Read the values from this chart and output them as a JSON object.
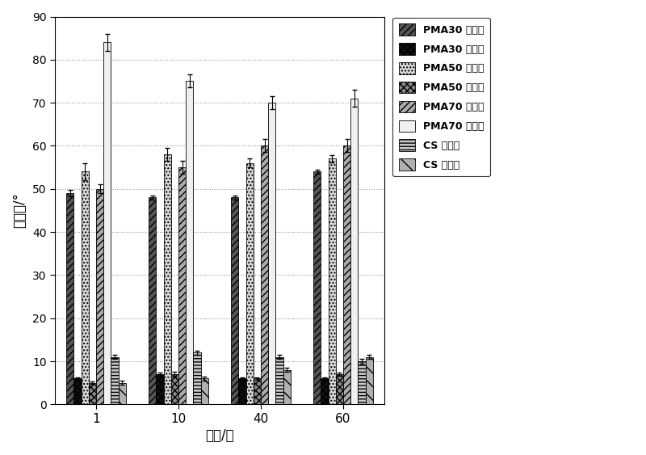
{
  "time_labels": [
    "1",
    "10",
    "40",
    "60"
  ],
  "xlabel": "时间/天",
  "ylabel": "接触角/°",
  "ylim": [
    0,
    90
  ],
  "yticks": [
    0,
    10,
    20,
    30,
    40,
    50,
    60,
    70,
    80,
    90
  ],
  "series": [
    {
      "label": "PMA30 前进角",
      "values": [
        49,
        48,
        48,
        54
      ],
      "errors": [
        0.8,
        0.5,
        0.5,
        0.5
      ]
    },
    {
      "label": "PMA30 后退角",
      "values": [
        6,
        7,
        6,
        6
      ],
      "errors": [
        0.3,
        0.3,
        0.3,
        0.3
      ]
    },
    {
      "label": "PMA50 前进角",
      "values": [
        54,
        58,
        56,
        57
      ],
      "errors": [
        2.0,
        1.5,
        1.0,
        0.8
      ]
    },
    {
      "label": "PMA50 后退角",
      "values": [
        5,
        7,
        6,
        7
      ],
      "errors": [
        0.3,
        0.5,
        0.3,
        0.4
      ]
    },
    {
      "label": "PMA70 前进角",
      "values": [
        50,
        55,
        60,
        60
      ],
      "errors": [
        1.0,
        1.5,
        1.5,
        1.5
      ]
    },
    {
      "label": "PMA70 后退角",
      "values": [
        84,
        75,
        70,
        71
      ],
      "errors": [
        2.0,
        1.5,
        1.5,
        2.0
      ]
    },
    {
      "label": "CS 前进角",
      "values": [
        11,
        12,
        11,
        10
      ],
      "errors": [
        0.5,
        0.5,
        0.5,
        0.5
      ]
    },
    {
      "label": "CS 后退角",
      "values": [
        5,
        6,
        8,
        11
      ],
      "errors": [
        0.5,
        0.5,
        0.5,
        0.5
      ]
    }
  ],
  "series_styles": [
    {
      "hatch": "////",
      "fc": "#555555",
      "ec": "#000000"
    },
    {
      "hatch": "xxxx",
      "fc": "#111111",
      "ec": "#000000"
    },
    {
      "hatch": "....",
      "fc": "#d8d8d8",
      "ec": "#000000"
    },
    {
      "hatch": "xxxx",
      "fc": "#888888",
      "ec": "#000000"
    },
    {
      "hatch": "////",
      "fc": "#aaaaaa",
      "ec": "#000000"
    },
    {
      "hatch": "    ",
      "fc": "#f0f0f0",
      "ec": "#000000"
    },
    {
      "hatch": "----",
      "fc": "#c8c8c8",
      "ec": "#000000"
    },
    {
      "hatch": "\\\\",
      "fc": "#b0b0b0",
      "ec": "#000000"
    }
  ],
  "background_color": "#ffffff",
  "bar_width": 0.09,
  "figsize": [
    8.0,
    5.63
  ],
  "dpi": 100
}
